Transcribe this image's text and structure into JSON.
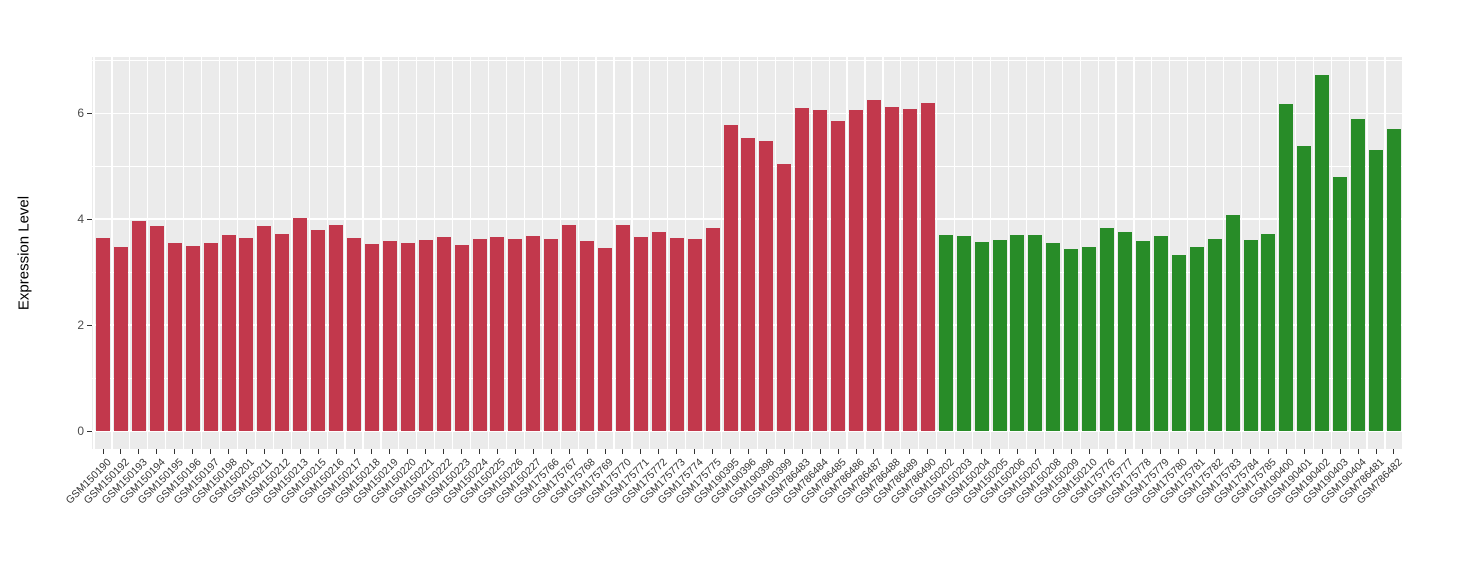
{
  "chart_data": {
    "type": "bar",
    "title": "",
    "xlabel": "",
    "ylabel": "Expression Level",
    "ylim": [
      0,
      7
    ],
    "yticks": [
      0,
      2,
      4,
      6
    ],
    "yminor": [
      1,
      3,
      5,
      7
    ],
    "grid": "on",
    "legend": "none",
    "panel_bg": "#EBEBEB",
    "grid_color": "#FFFFFF",
    "axis_text_color": "#4D4D4D",
    "color_map": {
      "red_group": "#C2384C",
      "green_group": "#288C28"
    },
    "categories": [
      "GSM150190",
      "GSM150192",
      "GSM150193",
      "GSM150194",
      "GSM150195",
      "GSM150196",
      "GSM150197",
      "GSM150198",
      "GSM150201",
      "GSM150211",
      "GSM150212",
      "GSM150213",
      "GSM150215",
      "GSM150216",
      "GSM150217",
      "GSM150218",
      "GSM150219",
      "GSM150220",
      "GSM150221",
      "GSM150222",
      "GSM150223",
      "GSM150224",
      "GSM150225",
      "GSM150226",
      "GSM150227",
      "GSM175766",
      "GSM175767",
      "GSM175768",
      "GSM175769",
      "GSM175770",
      "GSM175771",
      "GSM175772",
      "GSM175773",
      "GSM175774",
      "GSM175775",
      "GSM190395",
      "GSM190396",
      "GSM190398",
      "GSM190399",
      "GSM786483",
      "GSM786484",
      "GSM786485",
      "GSM786486",
      "GSM786487",
      "GSM786488",
      "GSM786489",
      "GSM786490",
      "GSM150202",
      "GSM150203",
      "GSM150204",
      "GSM150205",
      "GSM150206",
      "GSM150207",
      "GSM150208",
      "GSM150209",
      "GSM150210",
      "GSM175776",
      "GSM175777",
      "GSM175778",
      "GSM175779",
      "GSM175780",
      "GSM175781",
      "GSM175782",
      "GSM175783",
      "GSM175784",
      "GSM175785",
      "GSM190400",
      "GSM190401",
      "GSM190402",
      "GSM190403",
      "GSM190404",
      "GSM786481",
      "GSM786482"
    ],
    "values": [
      3.65,
      3.47,
      3.97,
      3.88,
      3.56,
      3.49,
      3.56,
      3.71,
      3.64,
      3.87,
      3.73,
      4.03,
      3.8,
      3.9,
      3.65,
      3.53,
      3.58,
      3.56,
      3.61,
      3.66,
      3.51,
      3.62,
      3.66,
      3.63,
      3.69,
      3.63,
      3.9,
      3.59,
      3.45,
      3.89,
      3.66,
      3.75,
      3.65,
      3.62,
      3.83,
      5.78,
      5.53,
      5.48,
      5.04,
      6.1,
      6.07,
      5.85,
      6.07,
      6.25,
      6.12,
      6.08,
      6.2,
      3.71,
      3.68,
      3.57,
      3.61,
      3.71,
      3.71,
      3.56,
      3.44,
      3.48,
      3.83,
      3.76,
      3.59,
      3.68,
      3.33,
      3.48,
      3.63,
      4.08,
      3.6,
      3.72,
      6.17,
      5.39,
      6.73,
      4.79,
      5.89,
      5.31,
      5.7
    ],
    "groups": [
      "red_group",
      "red_group",
      "red_group",
      "red_group",
      "red_group",
      "red_group",
      "red_group",
      "red_group",
      "red_group",
      "red_group",
      "red_group",
      "red_group",
      "red_group",
      "red_group",
      "red_group",
      "red_group",
      "red_group",
      "red_group",
      "red_group",
      "red_group",
      "red_group",
      "red_group",
      "red_group",
      "red_group",
      "red_group",
      "red_group",
      "red_group",
      "red_group",
      "red_group",
      "red_group",
      "red_group",
      "red_group",
      "red_group",
      "red_group",
      "red_group",
      "red_group",
      "red_group",
      "red_group",
      "red_group",
      "red_group",
      "red_group",
      "red_group",
      "red_group",
      "red_group",
      "red_group",
      "red_group",
      "red_group",
      "green_group",
      "green_group",
      "green_group",
      "green_group",
      "green_group",
      "green_group",
      "green_group",
      "green_group",
      "green_group",
      "green_group",
      "green_group",
      "green_group",
      "green_group",
      "green_group",
      "green_group",
      "green_group",
      "green_group",
      "green_group",
      "green_group",
      "green_group",
      "green_group",
      "green_group",
      "green_group",
      "green_group",
      "green_group",
      "green_group"
    ]
  }
}
